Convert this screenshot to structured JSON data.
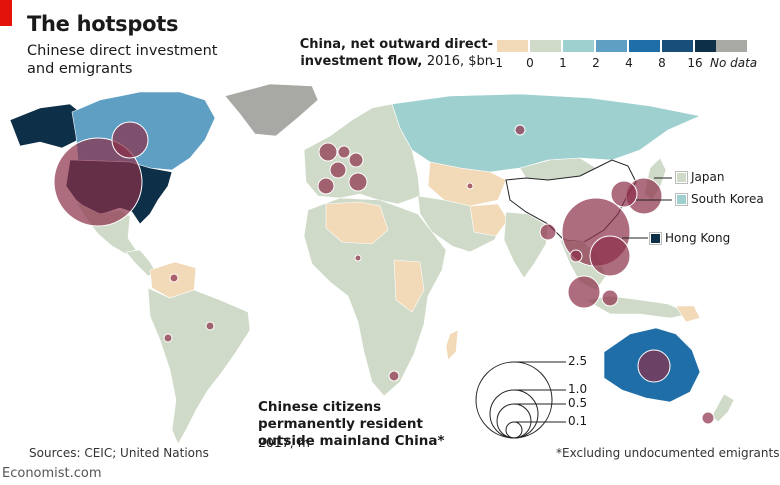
{
  "header": {
    "title": "The hotspots",
    "subtitle": "Chinese direct investment and emigrants"
  },
  "legend": {
    "title": "China, net outward direct-investment flow,",
    "unit": "2016, $bn",
    "ticks": [
      "-1",
      "0",
      "1",
      "2",
      "4",
      "8",
      "16"
    ],
    "colors": [
      "#f2d9b8",
      "#cfdac8",
      "#9fd0d0",
      "#5f9fc4",
      "#1f6ea8",
      "#174f7a",
      "#0e2f48"
    ],
    "no_data_label": "No data",
    "no_data_color": "#a8a8a4"
  },
  "bubble_legend": {
    "title": "Chinese citizens permanently resident outside mainland China*",
    "unit": "2017, m",
    "values": [
      "2.5",
      "1.0",
      "0.5",
      "0.1"
    ]
  },
  "callouts": {
    "japan": "Japan",
    "south_korea": "South Korea",
    "hong_kong": "Hong Kong"
  },
  "footer": {
    "sources": "Sources: CEIC; United Nations",
    "footnote": "*Excluding undocumented emigrants",
    "brand": "Economist.com"
  }
}
